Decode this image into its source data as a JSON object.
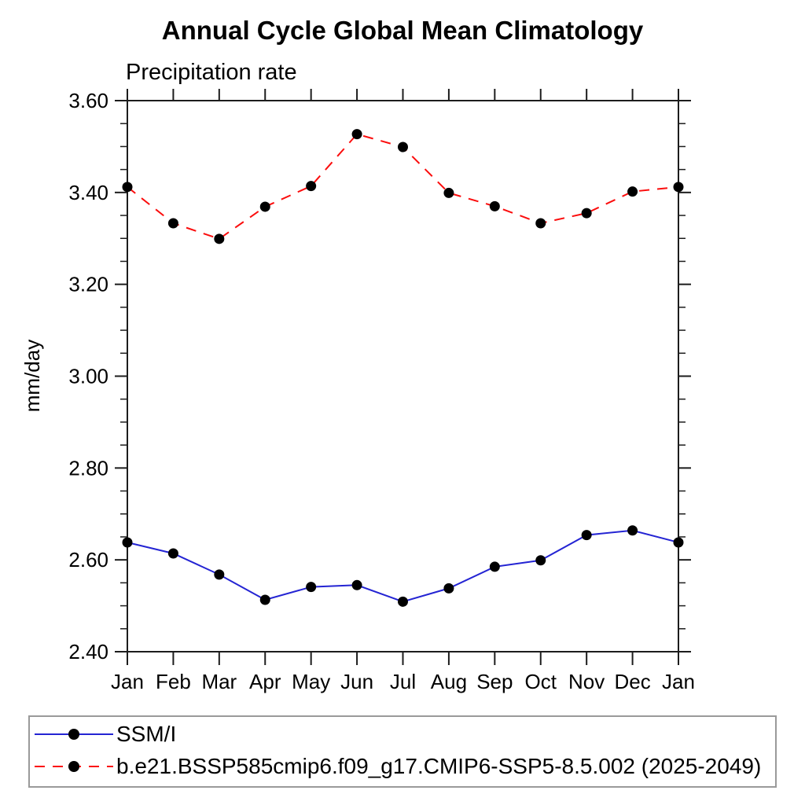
{
  "figure": {
    "background": "#ffffff",
    "axis_color": "#1c1c1c",
    "text_color": "#000000"
  },
  "chart_data": {
    "type": "line",
    "title": "Annual Cycle Global Mean Climatology",
    "subtitle": "Precipitation rate",
    "ylabel": "mm/day",
    "xlabel": "",
    "x_categories": [
      "Jan",
      "Feb",
      "Mar",
      "Apr",
      "May",
      "Jun",
      "Jul",
      "Aug",
      "Sep",
      "Oct",
      "Nov",
      "Dec",
      "Jan"
    ],
    "ylim": [
      2.4,
      3.6
    ],
    "y_major_step": 0.2,
    "y_minor_step": 0.05,
    "y_tick_label_format": "0.00",
    "grid": false,
    "legend_position": "bottom-left-box",
    "series": [
      {
        "name": "SSM/I",
        "color": "#2424d3",
        "line_style": "solid",
        "marker": "filled-circle",
        "marker_color": "#000000",
        "values": [
          2.638,
          2.614,
          2.568,
          2.513,
          2.541,
          2.545,
          2.509,
          2.538,
          2.585,
          2.599,
          2.654,
          2.664,
          2.638
        ]
      },
      {
        "name": "b.e21.BSSP585cmip6.f09_g17.CMIP6-SSP5-8.5.002 (2025-2049)",
        "color": "#fb0d0d",
        "line_style": "dashed",
        "marker": "filled-circle",
        "marker_color": "#000000",
        "values": [
          3.412,
          3.333,
          3.299,
          3.369,
          3.414,
          3.527,
          3.499,
          3.399,
          3.37,
          3.333,
          3.355,
          3.402,
          3.412
        ]
      }
    ]
  }
}
